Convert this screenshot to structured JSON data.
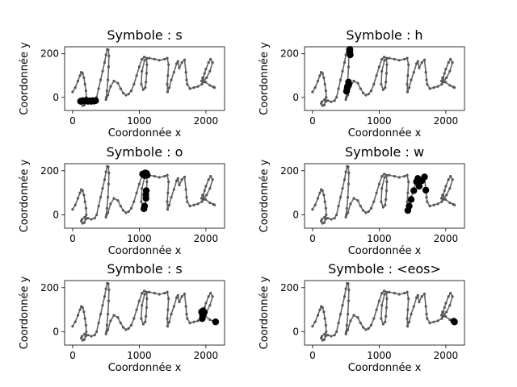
{
  "chart_data": [
    {
      "type": "scatter",
      "title": "Symbole : s",
      "xlabel": "Coordonnée x",
      "ylabel": "Coordonnée y",
      "xlim": [
        -120,
        2280
      ],
      "ylim": [
        -60,
        232
      ],
      "xticks": [
        "0",
        "1000",
        "2000"
      ],
      "yticks": [
        "0",
        "200"
      ],
      "highlight": [
        [
          120,
          -18
        ],
        [
          150,
          -15
        ],
        [
          180,
          -17
        ],
        [
          205,
          -14
        ],
        [
          230,
          -18
        ],
        [
          255,
          -16
        ],
        [
          280,
          -18
        ],
        [
          300,
          -15
        ],
        [
          320,
          -17
        ],
        [
          345,
          -15
        ]
      ]
    },
    {
      "type": "scatter",
      "title": "Symbole : h",
      "xlabel": "Coordonnée x",
      "ylabel": "Coordonnée y",
      "xlim": [
        -120,
        2280
      ],
      "ylim": [
        -60,
        232
      ],
      "xticks": [
        "0",
        "1000",
        "2000"
      ],
      "yticks": [
        "0",
        "200"
      ],
      "highlight": [
        [
          560,
          220
        ],
        [
          560,
          210
        ],
        [
          565,
          195
        ],
        [
          540,
          70
        ],
        [
          545,
          60
        ],
        [
          525,
          50
        ],
        [
          520,
          42
        ],
        [
          510,
          28
        ]
      ]
    },
    {
      "type": "scatter",
      "title": "Symbole : o",
      "xlabel": "Coordonnée x",
      "ylabel": "Coordonnée y",
      "xlim": [
        -120,
        2280
      ],
      "ylim": [
        -60,
        232
      ],
      "xticks": [
        "0",
        "1000",
        "2000"
      ],
      "yticks": [
        "0",
        "200"
      ],
      "highlight": [
        [
          1050,
          185
        ],
        [
          1080,
          178
        ],
        [
          1110,
          188
        ],
        [
          1120,
          180
        ],
        [
          1090,
          190
        ],
        [
          1105,
          110
        ],
        [
          1098,
          92
        ],
        [
          1100,
          75
        ],
        [
          1080,
          40
        ],
        [
          1070,
          28
        ]
      ]
    },
    {
      "type": "scatter",
      "title": "Symbole : w",
      "xlabel": "Coordonnée x",
      "ylabel": "Coordonnée y",
      "xlim": [
        -120,
        2280
      ],
      "ylim": [
        -60,
        232
      ],
      "xticks": [
        "0",
        "1000",
        "2000"
      ],
      "yticks": [
        "0",
        "200"
      ],
      "highlight": [
        [
          1430,
          20
        ],
        [
          1450,
          40
        ],
        [
          1480,
          70
        ],
        [
          1520,
          110
        ],
        [
          1560,
          150
        ],
        [
          1580,
          165
        ],
        [
          1600,
          130
        ],
        [
          1640,
          155
        ],
        [
          1680,
          172
        ],
        [
          1700,
          112
        ]
      ]
    },
    {
      "type": "scatter",
      "title": "Symbole : s",
      "xlabel": "Coordonnée x",
      "ylabel": "Coordonnée y",
      "xlim": [
        -120,
        2280
      ],
      "ylim": [
        -60,
        232
      ],
      "xticks": [
        "0",
        "1000",
        "2000"
      ],
      "yticks": [
        "0",
        "200"
      ],
      "highlight": [
        [
          1935,
          90
        ],
        [
          1955,
          95
        ],
        [
          1975,
          88
        ],
        [
          1960,
          80
        ],
        [
          1950,
          75
        ],
        [
          1945,
          60
        ],
        [
          2145,
          45
        ]
      ]
    },
    {
      "type": "scatter",
      "title": "Symbole : <eos>",
      "xlabel": "Coordonnée x",
      "ylabel": "Coordonnée y",
      "xlim": [
        -120,
        2280
      ],
      "ylim": [
        -60,
        232
      ],
      "xticks": [
        "0",
        "1000",
        "2000"
      ],
      "yticks": [
        "0",
        "200"
      ],
      "highlight": [
        [
          2120,
          48
        ],
        [
          2130,
          45
        ]
      ]
    }
  ],
  "trajectory": [
    [
      0,
      25
    ],
    [
      40,
      45
    ],
    [
      80,
      75
    ],
    [
      110,
      100
    ],
    [
      130,
      115
    ],
    [
      150,
      110
    ],
    [
      170,
      90
    ],
    [
      185,
      60
    ],
    [
      200,
      30
    ],
    [
      205,
      0
    ],
    [
      195,
      -20
    ],
    [
      175,
      -35
    ],
    [
      150,
      -38
    ],
    [
      130,
      -28
    ],
    [
      140,
      -20
    ],
    [
      180,
      -10
    ],
    [
      230,
      -15
    ],
    [
      280,
      -20
    ],
    [
      330,
      -15
    ],
    [
      360,
      0
    ],
    [
      390,
      40
    ],
    [
      420,
      80
    ],
    [
      450,
      120
    ],
    [
      480,
      160
    ],
    [
      500,
      195
    ],
    [
      520,
      220
    ],
    [
      535,
      218
    ],
    [
      545,
      190
    ],
    [
      540,
      140
    ],
    [
      530,
      80
    ],
    [
      515,
      30
    ],
    [
      505,
      0
    ],
    [
      500,
      -10
    ],
    [
      530,
      10
    ],
    [
      570,
      50
    ],
    [
      620,
      75
    ],
    [
      680,
      65
    ],
    [
      720,
      40
    ],
    [
      760,
      20
    ],
    [
      800,
      10
    ],
    [
      840,
      15
    ],
    [
      880,
      30
    ],
    [
      920,
      60
    ],
    [
      960,
      100
    ],
    [
      1000,
      140
    ],
    [
      1040,
      175
    ],
    [
      1075,
      185
    ],
    [
      1110,
      180
    ],
    [
      1115,
      150
    ],
    [
      1110,
      110
    ],
    [
      1100,
      70
    ],
    [
      1090,
      45
    ],
    [
      1060,
      35
    ],
    [
      1030,
      60
    ],
    [
      1040,
      120
    ],
    [
      1080,
      170
    ],
    [
      1150,
      180
    ],
    [
      1230,
      175
    ],
    [
      1300,
      170
    ],
    [
      1380,
      175
    ],
    [
      1420,
      180
    ],
    [
      1440,
      150
    ],
    [
      1430,
      100
    ],
    [
      1420,
      60
    ],
    [
      1425,
      25
    ],
    [
      1450,
      45
    ],
    [
      1480,
      80
    ],
    [
      1520,
      115
    ],
    [
      1560,
      155
    ],
    [
      1580,
      165
    ],
    [
      1600,
      135
    ],
    [
      1640,
      160
    ],
    [
      1680,
      172
    ],
    [
      1700,
      115
    ],
    [
      1710,
      80
    ],
    [
      1720,
      60
    ],
    [
      1760,
      40
    ],
    [
      1820,
      45
    ],
    [
      1880,
      50
    ],
    [
      1940,
      60
    ],
    [
      1960,
      90
    ],
    [
      1980,
      110
    ],
    [
      2000,
      130
    ],
    [
      2040,
      160
    ],
    [
      2070,
      175
    ],
    [
      2100,
      160
    ],
    [
      2060,
      120
    ],
    [
      2010,
      90
    ],
    [
      1960,
      70
    ],
    [
      1935,
      75
    ],
    [
      1950,
      90
    ],
    [
      1995,
      70
    ],
    [
      2060,
      55
    ],
    [
      2110,
      48
    ],
    [
      2130,
      45
    ]
  ]
}
